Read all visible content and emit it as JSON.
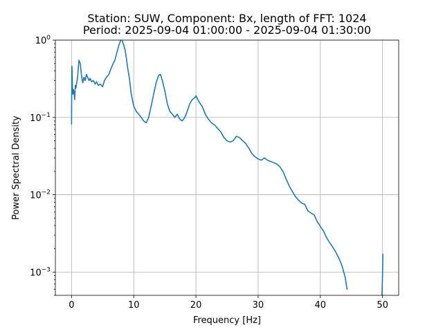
{
  "chart_data": {
    "type": "line",
    "title": [
      "Station: SUW, Component: Bx, length of FFT: 1024",
      "Period: 2025-09-04 01:00:00 - 2025-09-04 01:30:00"
    ],
    "xlabel": "Frequency [Hz]",
    "ylabel": "Power Spectral Density",
    "xlim": [
      -2.6,
      52.6
    ],
    "ylim": [
      0.0005,
      1.0
    ],
    "yscale": "log",
    "grid": true,
    "xticks": [
      {
        "value": 0,
        "label": "0"
      },
      {
        "value": 10,
        "label": "10"
      },
      {
        "value": 20,
        "label": "20"
      },
      {
        "value": 30,
        "label": "30"
      },
      {
        "value": 40,
        "label": "40"
      },
      {
        "value": 50,
        "label": "50"
      }
    ],
    "yticks": [
      {
        "value": 0.001,
        "base": "10",
        "exp": "−3"
      },
      {
        "value": 0.01,
        "base": "10",
        "exp": "−2"
      },
      {
        "value": 0.1,
        "base": "10",
        "exp": "−1"
      },
      {
        "value": 1.0,
        "base": "10",
        "exp": "0"
      }
    ],
    "series": [
      {
        "color": "#1f77b4",
        "x": [
          0.0,
          0.05,
          0.1,
          0.15,
          0.2,
          0.3,
          0.4,
          0.5,
          0.6,
          0.7,
          0.8,
          0.9,
          1.0,
          1.1,
          1.2,
          1.4,
          1.6,
          1.8,
          2.0,
          2.2,
          2.4,
          2.6,
          2.8,
          3.0,
          3.2,
          3.5,
          3.8,
          4.0,
          4.3,
          4.6,
          5.0,
          5.3,
          5.6,
          6.0,
          6.3,
          6.6,
          7.0,
          7.3,
          7.6,
          7.8,
          8.0,
          8.2,
          8.4,
          8.6,
          8.8,
          9.0,
          9.3,
          9.6,
          10.0,
          10.4,
          10.8,
          11.2,
          11.6,
          12.0,
          12.4,
          12.8,
          13.2,
          13.6,
          14.0,
          14.3,
          14.6,
          15.0,
          15.4,
          15.8,
          16.2,
          16.6,
          17.0,
          17.4,
          17.8,
          18.2,
          18.6,
          19.0,
          19.4,
          19.8,
          20.0,
          20.3,
          20.7,
          21.0,
          21.5,
          22.0,
          22.5,
          23.0,
          23.5,
          24.0,
          24.5,
          25.0,
          25.5,
          26.0,
          26.5,
          27.0,
          27.5,
          28.0,
          28.5,
          29.0,
          29.5,
          30.0,
          30.5,
          31.0,
          31.5,
          32.0,
          32.5,
          33.0,
          33.5,
          34.0,
          34.5,
          35.0,
          35.5,
          36.0,
          36.5,
          37.0,
          37.5,
          38.0,
          38.5,
          39.0,
          39.5,
          40.0,
          40.5,
          41.0,
          41.5,
          42.0,
          42.5,
          43.0,
          43.5,
          44.0,
          44.3,
          49.9,
          50.0,
          50.05
        ],
        "y": [
          0.082,
          0.46,
          0.38,
          0.22,
          0.2,
          0.23,
          0.21,
          0.17,
          0.26,
          0.24,
          0.27,
          0.3,
          0.35,
          0.45,
          0.55,
          0.5,
          0.35,
          0.28,
          0.33,
          0.3,
          0.36,
          0.33,
          0.3,
          0.32,
          0.29,
          0.3,
          0.27,
          0.29,
          0.26,
          0.27,
          0.25,
          0.3,
          0.33,
          0.36,
          0.42,
          0.48,
          0.56,
          0.7,
          0.85,
          0.95,
          1.05,
          0.96,
          0.85,
          0.75,
          0.6,
          0.45,
          0.32,
          0.2,
          0.14,
          0.12,
          0.11,
          0.1,
          0.09,
          0.085,
          0.1,
          0.14,
          0.2,
          0.28,
          0.35,
          0.36,
          0.3,
          0.22,
          0.15,
          0.12,
          0.11,
          0.1,
          0.11,
          0.095,
          0.09,
          0.1,
          0.12,
          0.15,
          0.17,
          0.18,
          0.19,
          0.17,
          0.15,
          0.14,
          0.11,
          0.095,
          0.085,
          0.08,
          0.072,
          0.065,
          0.055,
          0.05,
          0.048,
          0.05,
          0.057,
          0.055,
          0.05,
          0.046,
          0.04,
          0.034,
          0.031,
          0.029,
          0.028,
          0.03,
          0.028,
          0.027,
          0.026,
          0.025,
          0.023,
          0.02,
          0.016,
          0.013,
          0.011,
          0.0095,
          0.0085,
          0.0078,
          0.0075,
          0.0062,
          0.0058,
          0.0055,
          0.0045,
          0.0039,
          0.0034,
          0.0028,
          0.0024,
          0.0021,
          0.0018,
          0.0015,
          0.0012,
          0.00085,
          0.0006,
          0.00045,
          0.0009,
          0.0017
        ]
      }
    ]
  }
}
